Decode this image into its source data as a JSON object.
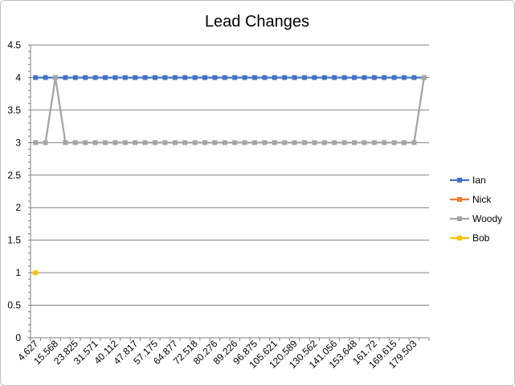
{
  "chart_data": {
    "type": "line",
    "title": "Lead Changes",
    "xlabel": "",
    "ylabel": "",
    "ylim": [
      0,
      4.5
    ],
    "ytick_step": 0.5,
    "grid": "horizontal",
    "legend_position": "right",
    "x_tick_labels": [
      "4.627",
      "15.568",
      "23.825",
      "31.571",
      "40.112",
      "47.817",
      "57.175",
      "64.877",
      "72.518",
      "80.276",
      "89.226",
      "96.875",
      "105.621",
      "120.589",
      "130.562",
      "141.056",
      "153.648",
      "161.72",
      "169.615",
      "179.503"
    ],
    "num_points": 40,
    "series": [
      {
        "name": "Ian",
        "color": "#4472C4",
        "values": [
          4,
          4,
          4,
          4,
          4,
          4,
          4,
          4,
          4,
          4,
          4,
          4,
          4,
          4,
          4,
          4,
          4,
          4,
          4,
          4,
          4,
          4,
          4,
          4,
          4,
          4,
          4,
          4,
          4,
          4,
          4,
          4,
          4,
          4,
          4,
          4,
          4,
          4,
          4,
          4
        ]
      },
      {
        "name": "Nick",
        "color": "#ED7D31",
        "values": [
          null,
          null,
          null,
          null,
          null,
          null,
          null,
          null,
          null,
          null,
          null,
          null,
          null,
          null,
          null,
          null,
          null,
          null,
          null,
          null,
          null,
          null,
          null,
          null,
          null,
          null,
          null,
          null,
          null,
          null,
          null,
          null,
          null,
          null,
          null,
          null,
          null,
          null,
          null,
          null
        ]
      },
      {
        "name": "Woody",
        "color": "#A5A5A5",
        "values": [
          3,
          3,
          4,
          3,
          3,
          3,
          3,
          3,
          3,
          3,
          3,
          3,
          3,
          3,
          3,
          3,
          3,
          3,
          3,
          3,
          3,
          3,
          3,
          3,
          3,
          3,
          3,
          3,
          3,
          3,
          3,
          3,
          3,
          3,
          3,
          3,
          3,
          3,
          3,
          4
        ]
      },
      {
        "name": "Bob",
        "color": "#FFC000",
        "values": [
          1,
          null,
          null,
          null,
          null,
          null,
          null,
          null,
          null,
          null,
          null,
          null,
          null,
          null,
          null,
          null,
          null,
          null,
          null,
          null,
          null,
          null,
          null,
          null,
          null,
          null,
          null,
          null,
          null,
          null,
          null,
          null,
          null,
          null,
          null,
          null,
          null,
          null,
          null,
          null
        ]
      }
    ]
  }
}
